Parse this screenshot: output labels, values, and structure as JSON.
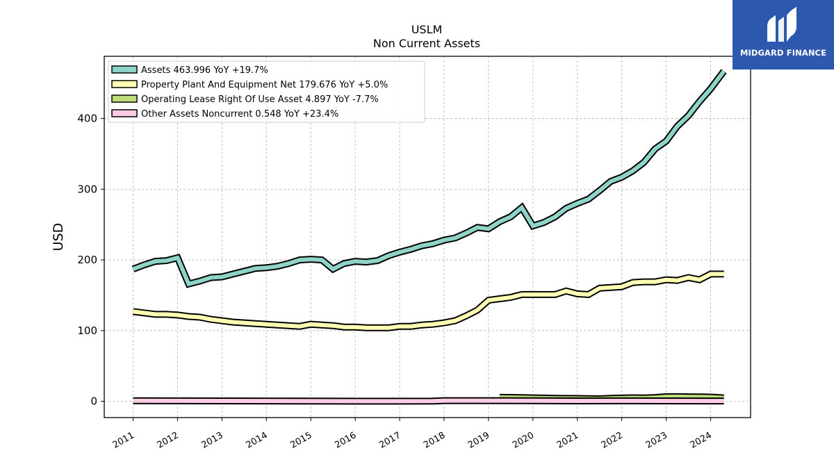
{
  "brand": {
    "name": "MIDGARD FINANCE",
    "bg_color": "#2c58ae"
  },
  "chart_data": {
    "type": "line",
    "title": "USLM",
    "subtitle": "Non Current  Assets",
    "ylabel": "USD",
    "xlabel": "",
    "ylim": [
      -23,
      488
    ],
    "xlim": [
      2010.35,
      2024.9
    ],
    "yticks": [
      0,
      100,
      200,
      300,
      400
    ],
    "xticks": [
      "2011",
      "2012",
      "2013",
      "2014",
      "2015",
      "2016",
      "2017",
      "2018",
      "2019",
      "2020",
      "2021",
      "2022",
      "2023",
      "2024"
    ],
    "grid": true,
    "legend_position": "top-left",
    "series": [
      {
        "name": "Assets",
        "legend": "Assets  463.996 YoY +19.7%",
        "color": "#8dd3c7",
        "x": [
          2011.0,
          2011.25,
          2011.5,
          2011.75,
          2012.0,
          2012.25,
          2012.5,
          2012.75,
          2013.0,
          2013.25,
          2013.5,
          2013.75,
          2014.0,
          2014.25,
          2014.5,
          2014.75,
          2015.0,
          2015.25,
          2015.5,
          2015.75,
          2016.0,
          2016.25,
          2016.5,
          2016.75,
          2017.0,
          2017.25,
          2017.5,
          2017.75,
          2018.0,
          2018.25,
          2018.5,
          2018.75,
          2019.0,
          2019.25,
          2019.5,
          2019.75,
          2020.0,
          2020.25,
          2020.5,
          2020.75,
          2021.0,
          2021.25,
          2021.5,
          2021.75,
          2022.0,
          2022.25,
          2022.5,
          2022.75,
          2023.0,
          2023.25,
          2023.5,
          2023.75,
          2024.0,
          2024.3
        ],
        "values": [
          187,
          193,
          198,
          199,
          203,
          166,
          170,
          175,
          176,
          180,
          184,
          188,
          189,
          191,
          195,
          200,
          201,
          200,
          187,
          195,
          198,
          197,
          199,
          206,
          211,
          215,
          220,
          223,
          228,
          231,
          238,
          246,
          244,
          254,
          261,
          274,
          248,
          253,
          261,
          273,
          280,
          286,
          298,
          311,
          317,
          326,
          338,
          357,
          368,
          389,
          404,
          424,
          442,
          467
        ]
      },
      {
        "name": "Property Plant And Equipment Net",
        "legend": "Property Plant And Equipment Net  179.676 YoY +5.0%",
        "color": "#ffffb3",
        "x": [
          2011.0,
          2011.25,
          2011.5,
          2011.75,
          2012.0,
          2012.25,
          2012.5,
          2012.75,
          2013.0,
          2013.25,
          2013.5,
          2013.75,
          2014.0,
          2014.25,
          2014.5,
          2014.75,
          2015.0,
          2015.25,
          2015.5,
          2015.75,
          2016.0,
          2016.25,
          2016.5,
          2016.75,
          2017.0,
          2017.25,
          2017.5,
          2017.75,
          2018.0,
          2018.25,
          2018.5,
          2018.75,
          2019.0,
          2019.25,
          2019.5,
          2019.75,
          2020.0,
          2020.25,
          2020.5,
          2020.75,
          2021.0,
          2021.25,
          2021.5,
          2021.75,
          2022.0,
          2022.25,
          2022.5,
          2022.75,
          2023.0,
          2023.25,
          2023.5,
          2023.75,
          2024.0,
          2024.3
        ],
        "values": [
          127,
          125,
          123,
          123,
          122,
          120,
          119,
          116,
          114,
          112,
          111,
          110,
          109,
          108,
          107,
          106,
          109,
          108,
          107,
          105,
          105,
          104,
          104,
          104,
          106,
          106,
          108,
          109,
          111,
          114,
          121,
          129,
          143,
          145,
          147,
          151,
          151,
          151,
          151,
          156,
          152,
          151,
          160,
          161,
          162,
          168,
          169,
          169,
          172,
          171,
          175,
          172,
          180,
          180
        ]
      },
      {
        "name": "Operating Lease Right Of Use Asset",
        "legend": "Operating Lease Right Of Use Asset  4.897 YoY -7.7%",
        "color": "#bedc7a",
        "x": [
          2019.25,
          2019.5,
          2019.75,
          2020.0,
          2020.25,
          2020.5,
          2020.75,
          2021.0,
          2021.25,
          2021.5,
          2021.75,
          2022.0,
          2022.25,
          2022.5,
          2022.75,
          2023.0,
          2023.25,
          2023.5,
          2023.75,
          2024.0,
          2024.3
        ],
        "values": [
          5.6,
          5.5,
          5.3,
          4.9,
          4.6,
          4.3,
          4.1,
          4.0,
          3.7,
          3.5,
          4.2,
          4.6,
          5.0,
          4.7,
          5.4,
          6.5,
          6.6,
          6.4,
          6.2,
          6.0,
          4.9
        ]
      },
      {
        "name": "Other Assets Noncurrent",
        "legend": "Other Assets Noncurrent  0.548 YoY +23.4%",
        "color": "#fccde5",
        "x": [
          2011.0,
          2012.0,
          2013.0,
          2014.0,
          2015.0,
          2016.0,
          2017.0,
          2017.75,
          2018.0,
          2019.0,
          2020.0,
          2021.0,
          2022.0,
          2023.0,
          2024.0,
          2024.3
        ],
        "values": [
          0.8,
          0.7,
          0.6,
          0.5,
          0.3,
          0.2,
          0.2,
          0.3,
          1.0,
          1.0,
          0.8,
          0.6,
          0.7,
          0.6,
          0.5,
          0.5
        ]
      }
    ]
  }
}
